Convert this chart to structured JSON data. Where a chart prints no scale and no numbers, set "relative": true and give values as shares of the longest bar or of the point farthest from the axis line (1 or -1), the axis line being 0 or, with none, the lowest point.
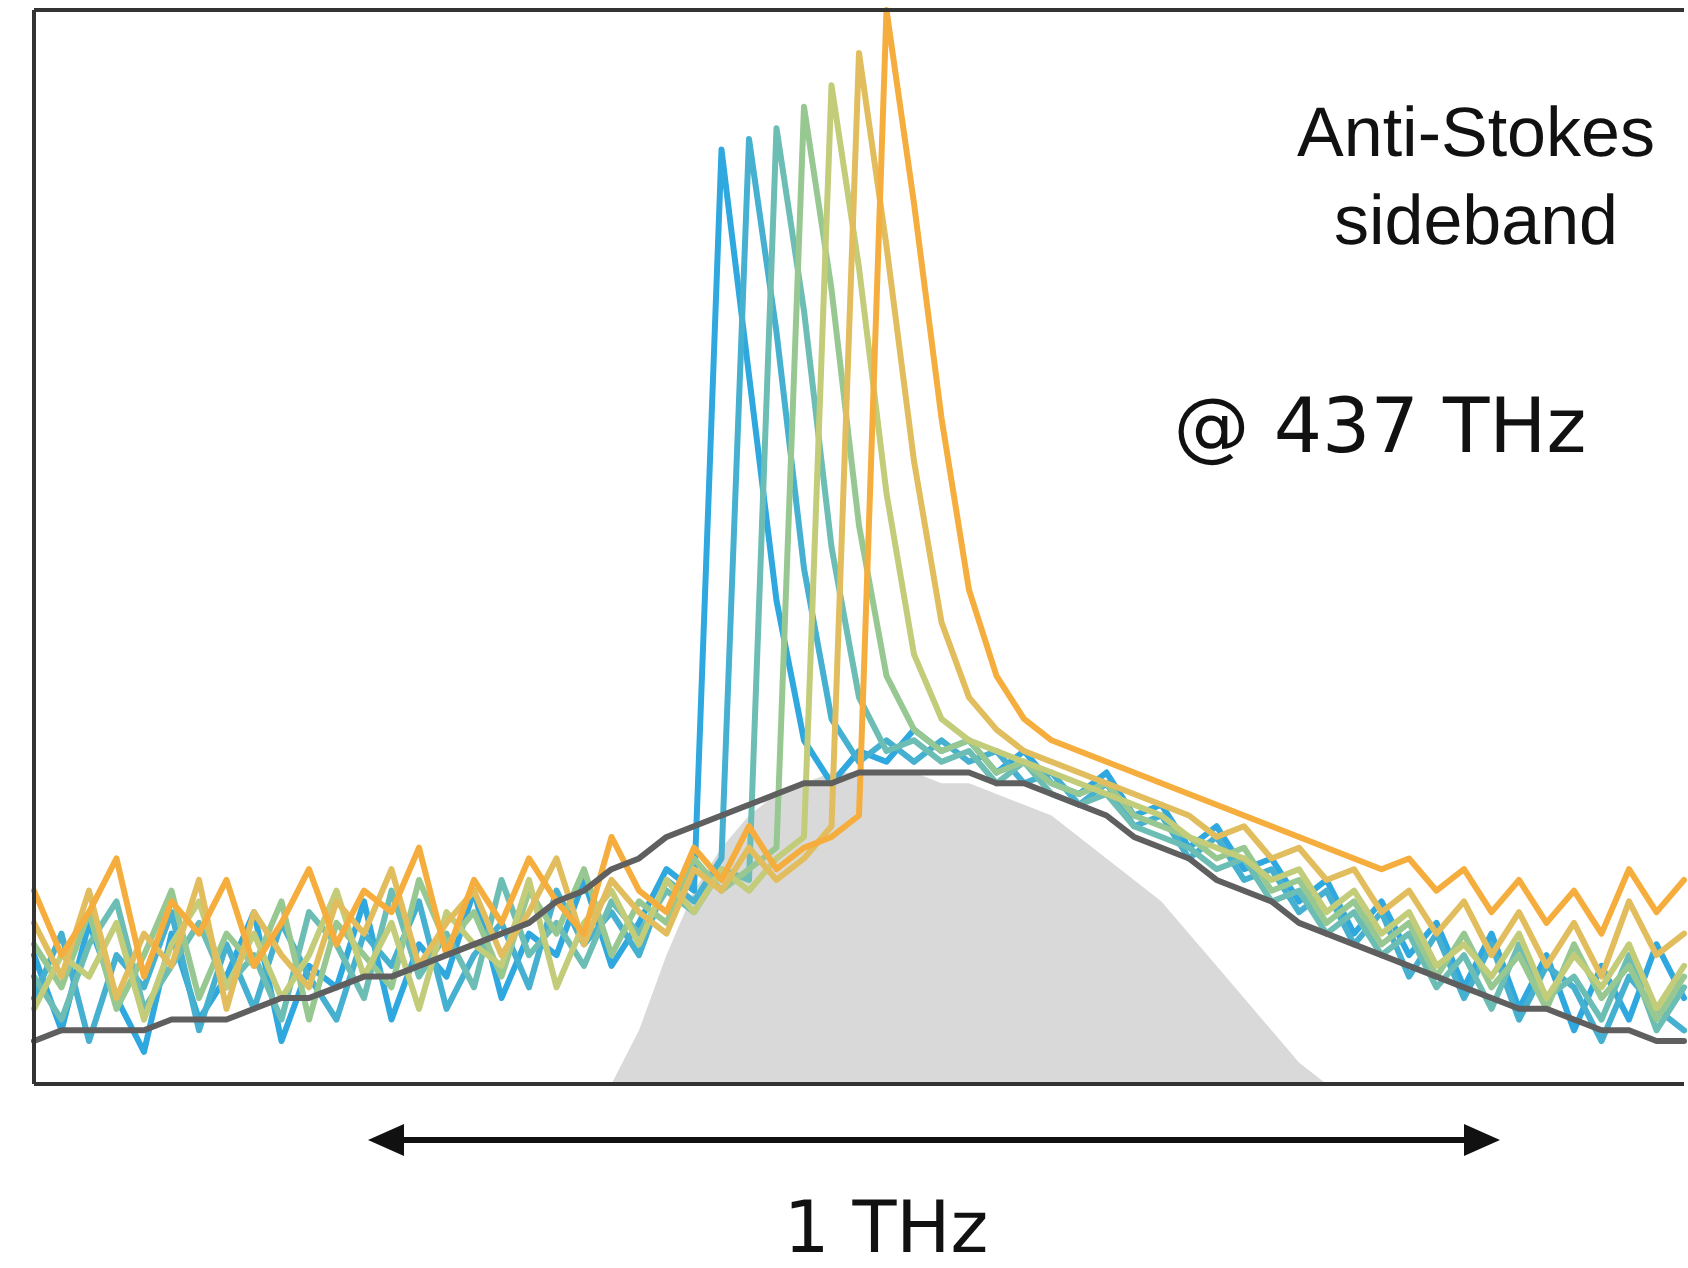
{
  "chart_data": {
    "type": "line",
    "relative": true,
    "annotations": [
      "Anti-Stokes\nsideband",
      "@ 437 THz",
      "1 THz"
    ],
    "categories": [
      null,
      null,
      null,
      null,
      null,
      null,
      null,
      null,
      null,
      null,
      null,
      null,
      null,
      null,
      null,
      null,
      null,
      null,
      null,
      null,
      null,
      null,
      null,
      null,
      null,
      null,
      null,
      null,
      null,
      null,
      null,
      null,
      null,
      null,
      null,
      null,
      null,
      null,
      null,
      null,
      null,
      null,
      null,
      null,
      null,
      null,
      null,
      null,
      null,
      null,
      null,
      null,
      null,
      null,
      null,
      null,
      null,
      null,
      null,
      null,
      null
    ],
    "series": [
      {
        "type": "area",
        "color": "#d9d9d9",
        "values": [
          0,
          0,
          0,
          0,
          0,
          0,
          0,
          0,
          0,
          0,
          0,
          0,
          0,
          0,
          0,
          0,
          0,
          0,
          0,
          0,
          0,
          0,
          0.05,
          0.12,
          0.18,
          0.22,
          0.25,
          0.27,
          0.28,
          0.29,
          0.29,
          0.29,
          0.29,
          0.28,
          0.28,
          0.27,
          0.26,
          0.25,
          0.23,
          0.21,
          0.19,
          0.17,
          0.14,
          0.11,
          0.08,
          0.05,
          0.02,
          0,
          0,
          0,
          0,
          0,
          0,
          0,
          0,
          0,
          0,
          0,
          0,
          0,
          0
        ]
      },
      {
        "color": "#2ea8df",
        "values": [
          0.12,
          0.05,
          0.15,
          0.08,
          0.03,
          0.14,
          0.06,
          0.1,
          0.16,
          0.04,
          0.11,
          0.09,
          0.17,
          0.06,
          0.13,
          0.1,
          0.18,
          0.08,
          0.14,
          0.12,
          0.19,
          0.11,
          0.15,
          0.2,
          0.18,
          0.87,
          0.66,
          0.45,
          0.32,
          0.28,
          0.31,
          0.3,
          0.33,
          0.31,
          0.32,
          0.29,
          0.31,
          0.28,
          0.27,
          0.29,
          0.25,
          0.26,
          0.22,
          0.24,
          0.2,
          0.21,
          0.17,
          0.19,
          0.14,
          0.17,
          0.12,
          0.15,
          0.09,
          0.14,
          0.07,
          0.12,
          0.05,
          0.11,
          0.06,
          0.13,
          0.08
        ]
      },
      {
        "color": "#45b0cf",
        "values": [
          0.08,
          0.14,
          0.04,
          0.12,
          0.09,
          0.16,
          0.05,
          0.13,
          0.07,
          0.15,
          0.1,
          0.06,
          0.14,
          0.11,
          0.17,
          0.07,
          0.12,
          0.15,
          0.09,
          0.18,
          0.13,
          0.16,
          0.12,
          0.19,
          0.17,
          0.21,
          0.88,
          0.7,
          0.48,
          0.34,
          0.3,
          0.32,
          0.3,
          0.32,
          0.3,
          0.31,
          0.28,
          0.29,
          0.26,
          0.28,
          0.24,
          0.25,
          0.21,
          0.23,
          0.19,
          0.2,
          0.16,
          0.18,
          0.13,
          0.16,
          0.1,
          0.14,
          0.08,
          0.13,
          0.06,
          0.11,
          0.09,
          0.04,
          0.1,
          0.07,
          0.05
        ]
      },
      {
        "color": "#6cbdb4",
        "values": [
          0.1,
          0.06,
          0.13,
          0.17,
          0.07,
          0.11,
          0.15,
          0.09,
          0.12,
          0.06,
          0.16,
          0.13,
          0.08,
          0.18,
          0.1,
          0.14,
          0.09,
          0.19,
          0.12,
          0.15,
          0.11,
          0.17,
          0.14,
          0.18,
          0.16,
          0.2,
          0.19,
          0.89,
          0.72,
          0.5,
          0.36,
          0.31,
          0.32,
          0.3,
          0.31,
          0.28,
          0.3,
          0.27,
          0.26,
          0.27,
          0.24,
          0.23,
          0.22,
          0.2,
          0.21,
          0.17,
          0.18,
          0.14,
          0.16,
          0.12,
          0.14,
          0.09,
          0.12,
          0.07,
          0.13,
          0.08,
          0.1,
          0.06,
          0.12,
          0.05,
          0.09
        ]
      },
      {
        "color": "#98c891",
        "values": [
          0.13,
          0.09,
          0.16,
          0.07,
          0.12,
          0.18,
          0.08,
          0.14,
          0.11,
          0.17,
          0.06,
          0.15,
          0.12,
          0.09,
          0.19,
          0.13,
          0.16,
          0.1,
          0.18,
          0.14,
          0.2,
          0.12,
          0.17,
          0.15,
          0.21,
          0.18,
          0.2,
          0.22,
          0.91,
          0.74,
          0.52,
          0.38,
          0.33,
          0.31,
          0.32,
          0.29,
          0.3,
          0.28,
          0.27,
          0.28,
          0.25,
          0.24,
          0.23,
          0.21,
          0.22,
          0.18,
          0.19,
          0.15,
          0.17,
          0.13,
          0.15,
          0.1,
          0.14,
          0.09,
          0.12,
          0.07,
          0.13,
          0.08,
          0.11,
          0.06,
          0.1
        ]
      },
      {
        "color": "#c2cc79",
        "values": [
          0.07,
          0.12,
          0.1,
          0.15,
          0.06,
          0.13,
          0.17,
          0.09,
          0.14,
          0.08,
          0.12,
          0.18,
          0.1,
          0.15,
          0.07,
          0.16,
          0.13,
          0.11,
          0.19,
          0.09,
          0.15,
          0.18,
          0.13,
          0.19,
          0.16,
          0.2,
          0.18,
          0.21,
          0.23,
          0.93,
          0.76,
          0.55,
          0.4,
          0.34,
          0.32,
          0.31,
          0.3,
          0.29,
          0.28,
          0.27,
          0.26,
          0.25,
          0.23,
          0.22,
          0.21,
          0.19,
          0.2,
          0.16,
          0.18,
          0.14,
          0.16,
          0.11,
          0.13,
          0.1,
          0.14,
          0.08,
          0.12,
          0.09,
          0.13,
          0.07,
          0.11
        ]
      },
      {
        "color": "#e2bd5e",
        "values": [
          0.15,
          0.1,
          0.18,
          0.08,
          0.14,
          0.11,
          0.19,
          0.07,
          0.16,
          0.12,
          0.09,
          0.17,
          0.14,
          0.2,
          0.11,
          0.15,
          0.18,
          0.12,
          0.16,
          0.21,
          0.13,
          0.19,
          0.16,
          0.14,
          0.2,
          0.18,
          0.22,
          0.19,
          0.21,
          0.24,
          0.96,
          0.78,
          0.58,
          0.43,
          0.36,
          0.33,
          0.31,
          0.3,
          0.29,
          0.28,
          0.27,
          0.26,
          0.25,
          0.23,
          0.24,
          0.21,
          0.22,
          0.19,
          0.2,
          0.16,
          0.18,
          0.14,
          0.17,
          0.12,
          0.16,
          0.11,
          0.15,
          0.1,
          0.17,
          0.12,
          0.14
        ]
      },
      {
        "color": "#f5ae3d",
        "values": [
          0.18,
          0.12,
          0.16,
          0.21,
          0.1,
          0.17,
          0.14,
          0.19,
          0.11,
          0.15,
          0.2,
          0.13,
          0.18,
          0.16,
          0.22,
          0.12,
          0.19,
          0.15,
          0.21,
          0.17,
          0.14,
          0.23,
          0.18,
          0.16,
          0.22,
          0.19,
          0.24,
          0.2,
          0.22,
          0.23,
          0.25,
          1,
          0.82,
          0.62,
          0.46,
          0.38,
          0.34,
          0.32,
          0.31,
          0.3,
          0.29,
          0.28,
          0.27,
          0.26,
          0.25,
          0.24,
          0.23,
          0.22,
          0.21,
          0.2,
          0.21,
          0.18,
          0.2,
          0.16,
          0.19,
          0.15,
          0.18,
          0.14,
          0.2,
          0.16,
          0.19
        ]
      },
      {
        "color": "#5f5f5f",
        "values": [
          0.04,
          0.05,
          0.05,
          0.05,
          0.05,
          0.06,
          0.06,
          0.06,
          0.07,
          0.08,
          0.08,
          0.09,
          0.1,
          0.1,
          0.11,
          0.12,
          0.13,
          0.14,
          0.15,
          0.17,
          0.18,
          0.2,
          0.21,
          0.23,
          0.24,
          0.25,
          0.26,
          0.27,
          0.28,
          0.28,
          0.29,
          0.29,
          0.29,
          0.29,
          0.29,
          0.28,
          0.28,
          0.27,
          0.26,
          0.25,
          0.23,
          0.22,
          0.21,
          0.19,
          0.18,
          0.17,
          0.15,
          0.14,
          0.13,
          0.12,
          0.11,
          0.1,
          0.09,
          0.08,
          0.07,
          0.07,
          0.06,
          0.05,
          0.05,
          0.04,
          0.04
        ]
      }
    ]
  }
}
